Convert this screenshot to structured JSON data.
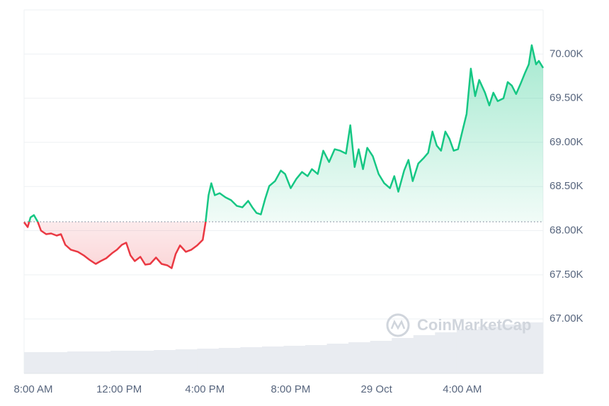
{
  "chart_data": {
    "type": "baseline-line",
    "x": [
      -0.43,
      -0.26,
      -0.13,
      0.03,
      0.2,
      0.36,
      0.6,
      0.83,
      1.09,
      1.29,
      1.49,
      1.75,
      2.08,
      2.35,
      2.61,
      2.91,
      3.14,
      3.4,
      3.67,
      3.9,
      4.13,
      4.33,
      4.53,
      4.73,
      4.99,
      5.22,
      5.45,
      5.72,
      5.98,
      6.25,
      6.45,
      6.64,
      6.84,
      7.11,
      7.37,
      7.64,
      7.9,
      8.03,
      8.17,
      8.3,
      8.46,
      8.69,
      8.96,
      9.22,
      9.49,
      9.75,
      10.02,
      10.21,
      10.41,
      10.61,
      10.81,
      11.0,
      11.27,
      11.54,
      11.74,
      12.0,
      12.26,
      12.53,
      12.79,
      12.99,
      13.26,
      13.52,
      13.79,
      14.05,
      14.31,
      14.58,
      14.78,
      14.98,
      15.17,
      15.37,
      15.57,
      15.83,
      16.1,
      16.36,
      16.63,
      16.83,
      17.02,
      17.29,
      17.49,
      17.69,
      17.95,
      18.21,
      18.41,
      18.61,
      18.81,
      19.01,
      19.21,
      19.4,
      19.6,
      19.8,
      20.0,
      20.2,
      20.4,
      20.6,
      20.79,
      21.06,
      21.26,
      21.45,
      21.65,
      21.92,
      22.12,
      22.31,
      22.51,
      22.71,
      22.91,
      23.1,
      23.24,
      23.44,
      23.57,
      23.77
    ],
    "values": [
      68096,
      68040,
      68150,
      68176,
      68104,
      68000,
      67960,
      67968,
      67944,
      67960,
      67840,
      67784,
      67760,
      67720,
      67671,
      67623,
      67655,
      67687,
      67744,
      67784,
      67840,
      67864,
      67720,
      67655,
      67703,
      67615,
      67623,
      67695,
      67623,
      67607,
      67575,
      67736,
      67832,
      67760,
      67784,
      67832,
      67896,
      68088,
      68401,
      68537,
      68401,
      68425,
      68377,
      68345,
      68280,
      68264,
      68337,
      68264,
      68200,
      68184,
      68361,
      68505,
      68561,
      68681,
      68641,
      68481,
      68585,
      68665,
      68617,
      68697,
      68641,
      68905,
      68777,
      68922,
      68905,
      68873,
      69194,
      68721,
      68922,
      68697,
      68938,
      68842,
      68641,
      68537,
      68481,
      68617,
      68441,
      68681,
      68801,
      68561,
      68761,
      68825,
      68881,
      69122,
      68962,
      68905,
      69122,
      69042,
      68905,
      68922,
      69122,
      69322,
      69835,
      69523,
      69707,
      69563,
      69418,
      69563,
      69467,
      69499,
      69683,
      69643,
      69547,
      69659,
      69779,
      69883,
      70100,
      69883,
      69923,
      69843
    ],
    "baseline": 68100,
    "up_color": "#16c784",
    "down_color": "#ea3943",
    "volume": {
      "color": "#e9ecf1",
      "values": [
        30,
        30,
        31,
        31,
        32,
        32,
        33,
        34,
        35,
        36,
        37,
        38,
        39,
        40,
        42,
        44,
        46,
        50,
        54,
        58,
        62,
        66,
        69,
        72
      ]
    },
    "xlim": [
      -0.43,
      23.77
    ],
    "xticks": [
      {
        "value": 0,
        "label": "8:00 AM"
      },
      {
        "value": 4,
        "label": "12:00 PM"
      },
      {
        "value": 8,
        "label": "4:00 PM"
      },
      {
        "value": 12,
        "label": "8:00 PM"
      },
      {
        "value": 16,
        "label": "29 Oct"
      },
      {
        "value": 20,
        "label": "4:00 AM"
      }
    ],
    "ylim": [
      66383,
      70500
    ],
    "yticks": [
      {
        "value": 67000,
        "label": "67.00K"
      },
      {
        "value": 67500,
        "label": "67.50K"
      },
      {
        "value": 68000,
        "label": "68.00K"
      },
      {
        "value": 68500,
        "label": "68.50K"
      },
      {
        "value": 69000,
        "label": "69.00K"
      },
      {
        "value": 69500,
        "label": "69.50K"
      },
      {
        "value": 70000,
        "label": "70.00K"
      }
    ],
    "grid": true,
    "watermark": "CoinMarketCap"
  }
}
